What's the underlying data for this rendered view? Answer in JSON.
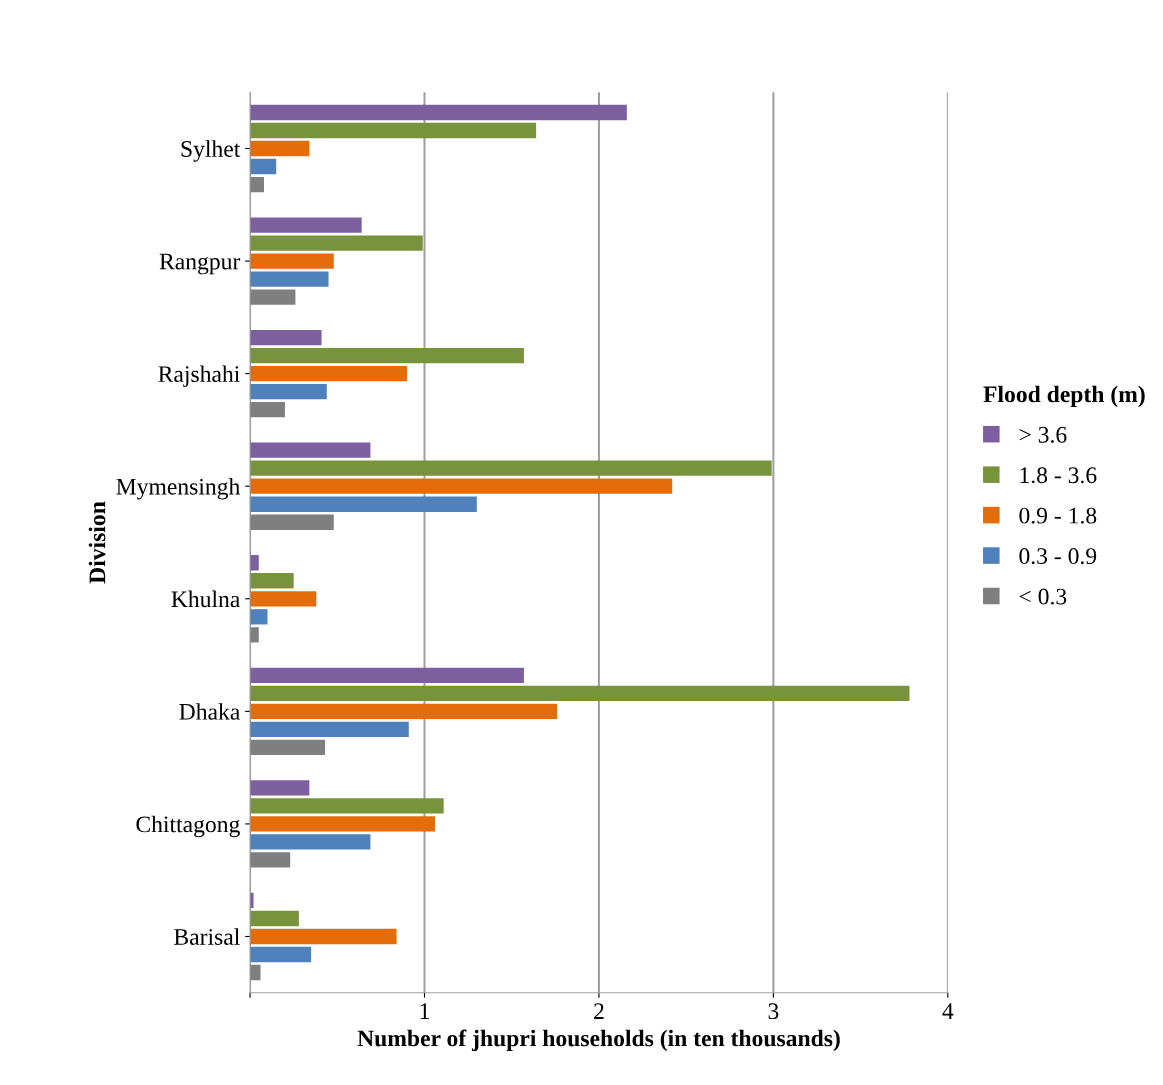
{
  "chart_data": {
    "type": "bar",
    "orientation": "horizontal",
    "xlabel": "Number of jhupri households (in ten thousands)",
    "ylabel": "Division",
    "legend_title": "Flood depth (m)",
    "legend": "right",
    "grid": "x",
    "categories": [
      "Sylhet",
      "Rangpur",
      "Rajshahi",
      "Mymensingh",
      "Khulna",
      "Dhaka",
      "Chittagong",
      "Barisal"
    ],
    "xlim": [
      0,
      4
    ],
    "xticks": [
      {
        "value": 0,
        "label": null
      },
      1,
      2,
      3,
      4
    ],
    "series": [
      {
        "name": "> 3.6",
        "color": "#7d5fa0",
        "values": [
          2.16,
          0.64,
          0.41,
          0.69,
          0.05,
          1.57,
          0.34,
          0.02
        ]
      },
      {
        "name": "1.8 - 3.6",
        "color": "#77933c",
        "values": [
          1.64,
          0.99,
          1.57,
          2.99,
          0.25,
          3.78,
          1.11,
          0.28
        ]
      },
      {
        "name": "0.9 - 1.8",
        "color": "#e46c0a",
        "values": [
          0.34,
          0.48,
          0.9,
          2.42,
          0.38,
          1.76,
          1.06,
          0.84
        ]
      },
      {
        "name": "0.3 - 0.9",
        "color": "#4f81bd",
        "values": [
          0.15,
          0.45,
          0.44,
          1.3,
          0.1,
          0.91,
          0.69,
          0.35
        ]
      },
      {
        "name": "< 0.3",
        "color": "#7f7f7f",
        "values": [
          0.08,
          0.26,
          0.2,
          0.48,
          0.05,
          0.43,
          0.23,
          0.06
        ]
      }
    ]
  }
}
